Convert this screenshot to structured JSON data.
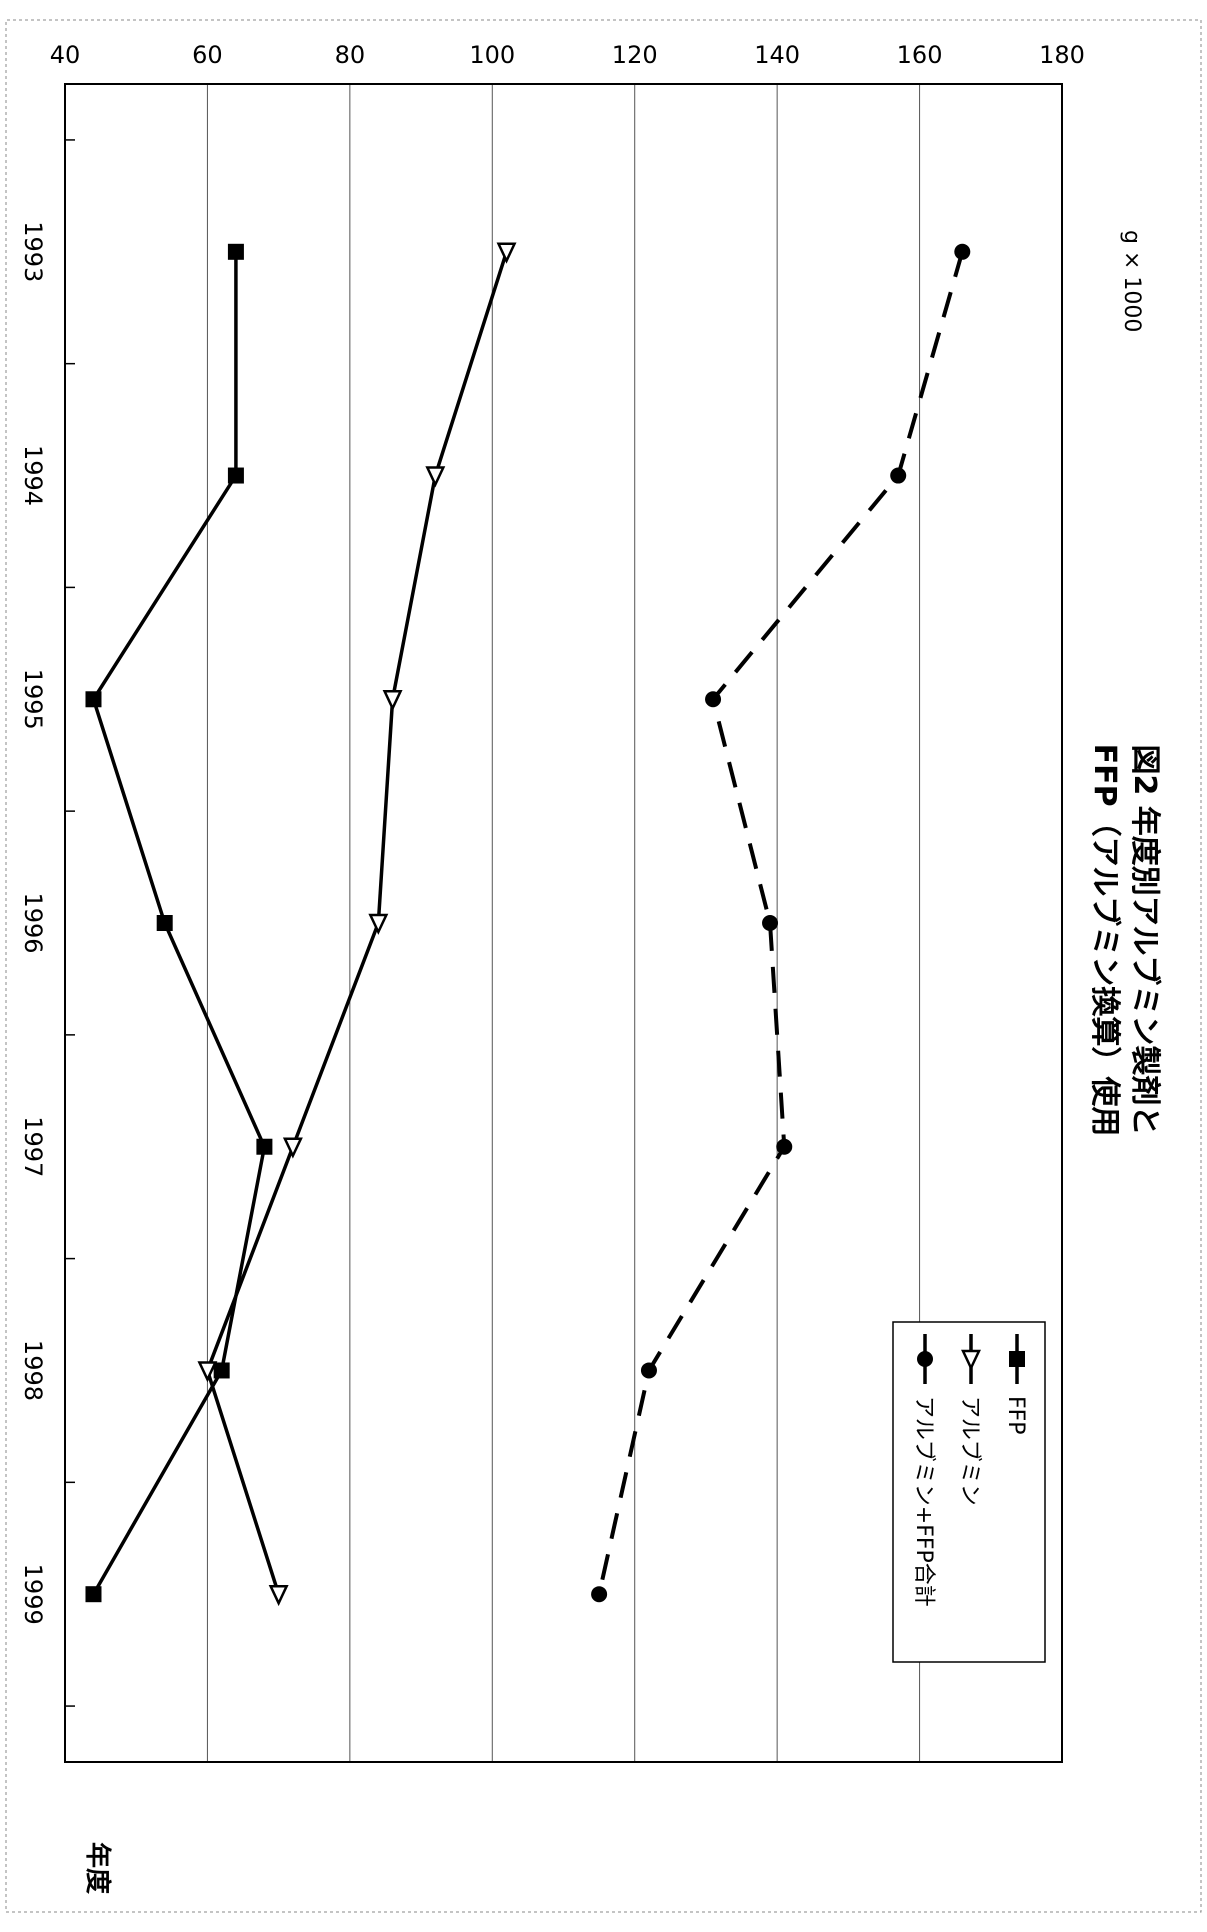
{
  "chart_data": {
    "type": "line",
    "title": "図2 年度別アルブミン製剤と",
    "subtitle": "FFP（アルブミン換算）使用",
    "unit_label": "g × 1000",
    "xlabel": "年度",
    "ylabel": "",
    "categories": [
      "1993",
      "1994",
      "1995",
      "1996",
      "1997",
      "1998",
      "1999"
    ],
    "ylim": [
      40,
      180
    ],
    "yticks": [
      40,
      60,
      80,
      100,
      120,
      140,
      160,
      180
    ],
    "grid": true,
    "legend_position": "top-right",
    "series": [
      {
        "name": "FFP",
        "marker": "square",
        "dash": "solid",
        "values": [
          64,
          64,
          44,
          54,
          68,
          62,
          44
        ]
      },
      {
        "name": "アルブミン",
        "marker": "triangle",
        "dash": "solid",
        "values": [
          102,
          92,
          86,
          84,
          72,
          60,
          70
        ]
      },
      {
        "name": "アルブミン+FFP合計",
        "marker": "circle",
        "dash": "dashed",
        "values": [
          166,
          157,
          131,
          139,
          141,
          122,
          115
        ]
      }
    ]
  }
}
